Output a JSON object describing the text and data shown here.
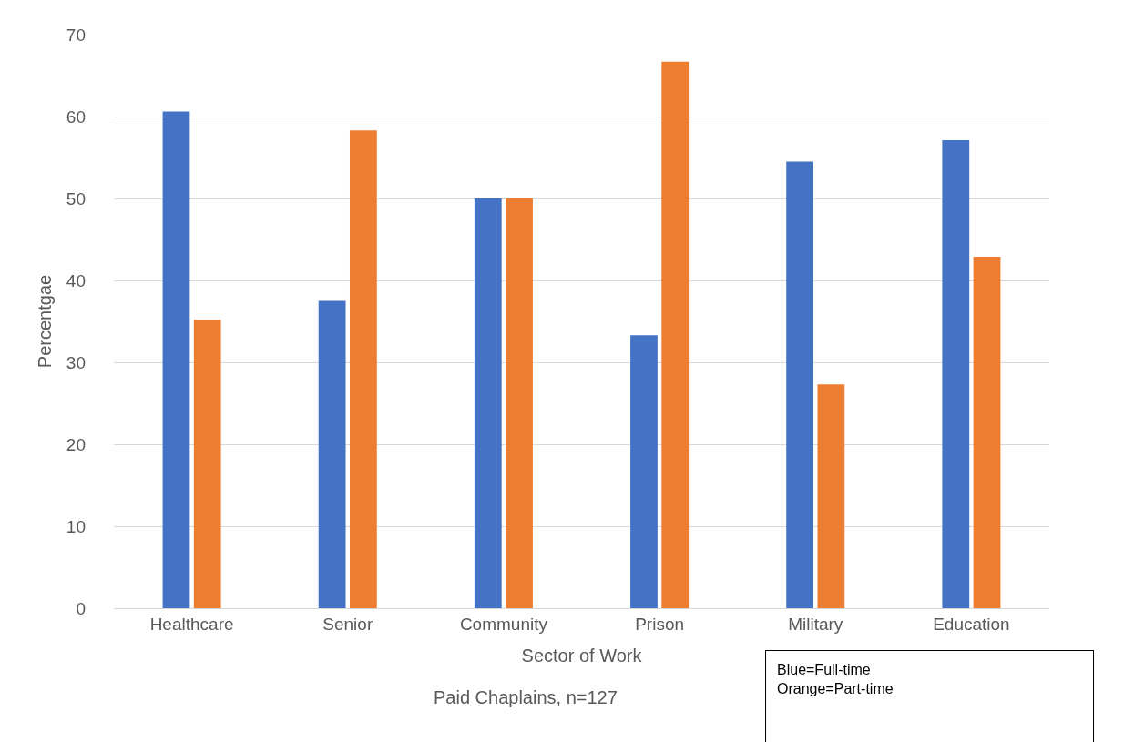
{
  "chart_data": {
    "type": "bar",
    "xlabel": "Sector of Work",
    "ylabel": "Percentgae",
    "categories": [
      "Healthcare",
      "Senior",
      "Community",
      "Prison",
      "Military",
      "Education"
    ],
    "series": [
      {
        "color": "#4472c4",
        "values": [
          60.6,
          37.5,
          50,
          33.3,
          54.5,
          57.1
        ]
      },
      {
        "color": "#ed7d31",
        "values": [
          35.2,
          58.3,
          50,
          66.7,
          27.3,
          42.9
        ]
      }
    ],
    "ylim": [
      0,
      70
    ],
    "yticks": [
      0,
      10,
      20,
      30,
      40,
      50,
      60,
      70
    ],
    "grid": "y",
    "annotations": [
      "Paid Chaplains, n=127",
      "Blue=Full-time\nOrange=Part-time"
    ]
  }
}
